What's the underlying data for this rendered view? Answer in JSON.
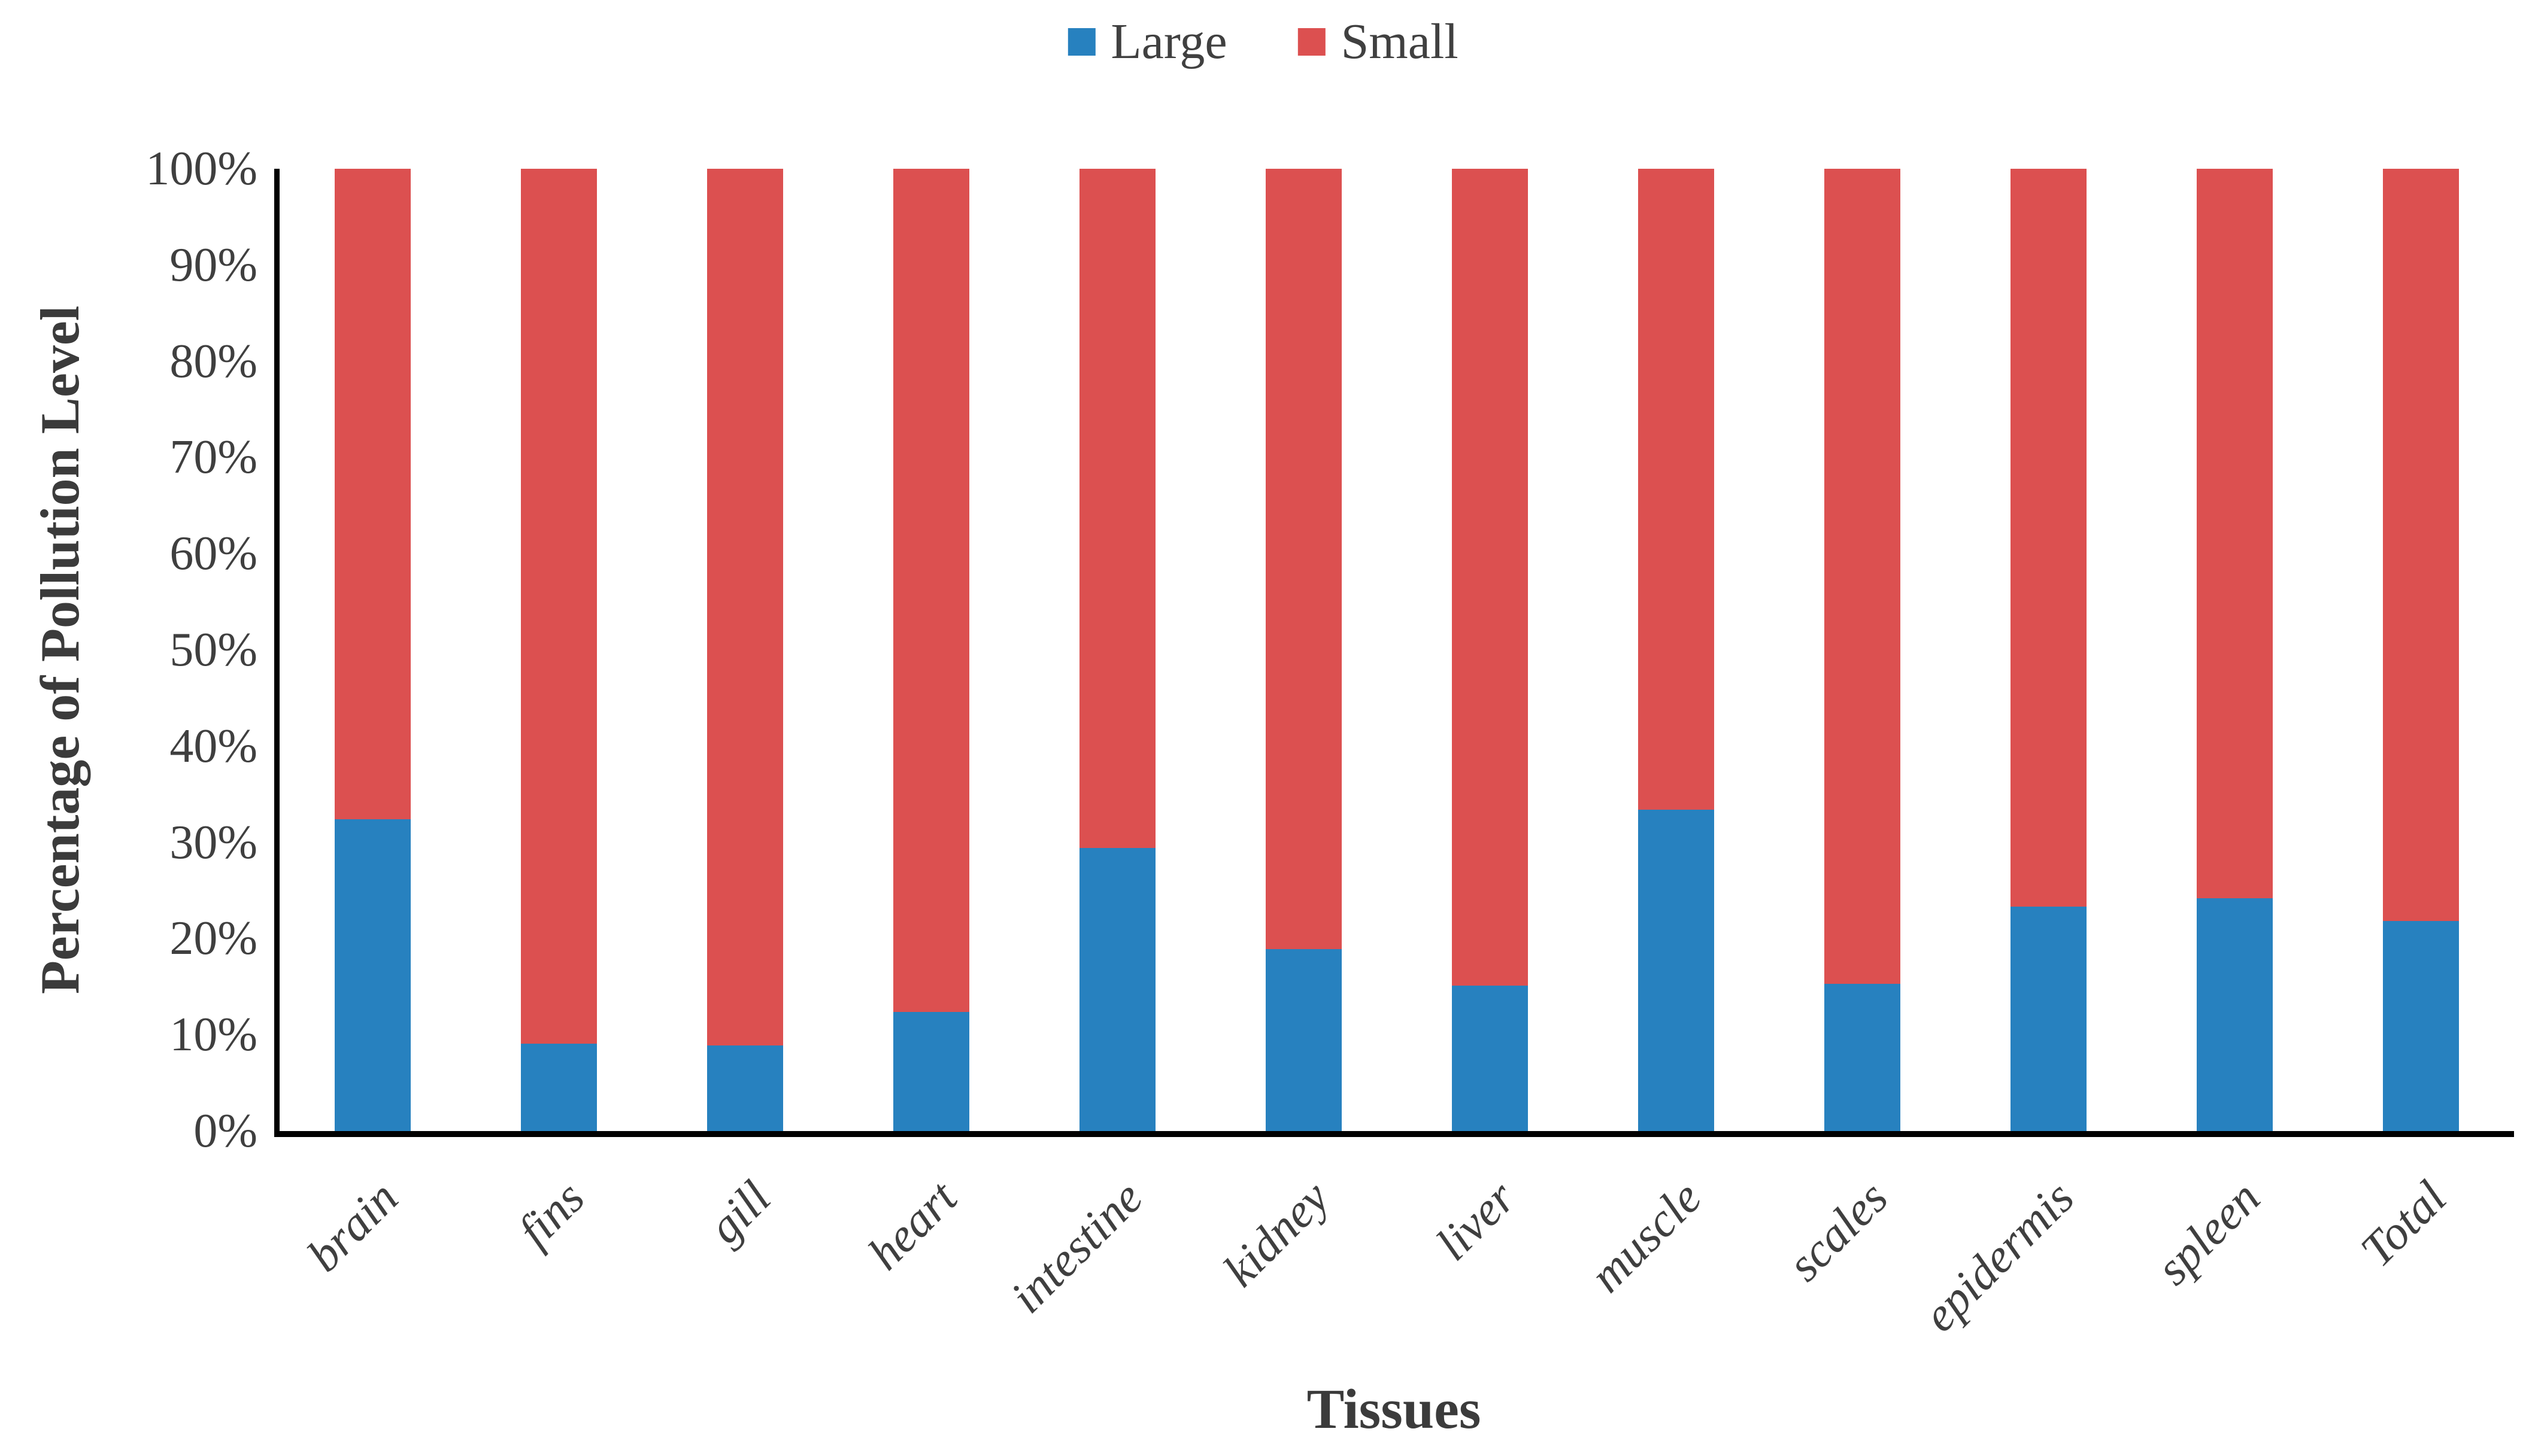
{
  "chart_data": {
    "type": "bar",
    "stacked": true,
    "stack_mode": "percent",
    "title": "",
    "xlabel": "Tissues",
    "ylabel": "Percentage of Pollution Level",
    "categories": [
      "brain",
      "fins",
      "gill",
      "heart",
      "intestine",
      "kidney",
      "liver",
      "muscle",
      "scales",
      "epidermis",
      "spleen",
      "Total"
    ],
    "series": [
      {
        "name": "Large",
        "color": "#2781BF",
        "values": [
          32.4,
          9.1,
          8.9,
          12.4,
          29.4,
          18.9,
          15.1,
          33.4,
          15.3,
          23.3,
          24.2,
          21.8
        ]
      },
      {
        "name": "Small",
        "color": "#DC5050",
        "values": [
          67.6,
          90.9,
          91.1,
          87.6,
          70.6,
          81.1,
          84.9,
          66.6,
          84.7,
          76.7,
          75.8,
          78.2
        ]
      }
    ],
    "ylim": [
      0,
      100
    ],
    "yticks": [
      "0%",
      "10%",
      "20%",
      "30%",
      "40%",
      "50%",
      "60%",
      "70%",
      "80%",
      "90%",
      "100%"
    ],
    "grid": false,
    "legend_position": "top-center",
    "axis_color": "#000000",
    "text_color": "#3f3f3f"
  }
}
